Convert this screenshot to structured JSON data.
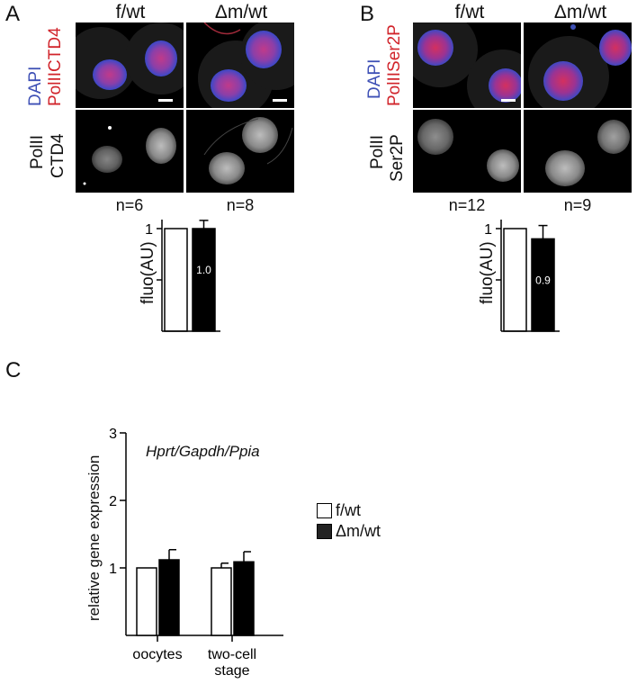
{
  "panels": {
    "A": {
      "letter": "A",
      "col1": "f/wt",
      "col2": "Δm/wt",
      "row1_stain_blue": "DAPI",
      "row1_stain_red": "PolIICTD4",
      "row2_line1": "PolII",
      "row2_line2": "CTD4",
      "n1": "n=6",
      "n2": "n=8",
      "chart_data": {
        "type": "bar",
        "categories": [
          "f/wt",
          "Δm/wt"
        ],
        "values": [
          1.0,
          1.0
        ],
        "errors": [
          0,
          0.08
        ],
        "data_labels": [
          "",
          "1.0"
        ],
        "ylabel": "fluo(AU)",
        "ytick_labels": [
          "1"
        ],
        "colors": [
          "#ffffff",
          "#000000"
        ]
      }
    },
    "B": {
      "letter": "B",
      "col1": "f/wt",
      "col2": "Δm/wt",
      "row1_stain_blue": "DAPI",
      "row1_stain_red": "PolIISer2P",
      "row2_line1": "PolII",
      "row2_line2": "Ser2P",
      "n1": "n=12",
      "n2": "n=9",
      "chart_data": {
        "type": "bar",
        "categories": [
          "f/wt",
          "Δm/wt"
        ],
        "values": [
          1.0,
          0.9
        ],
        "errors": [
          0,
          0.13
        ],
        "data_labels": [
          "",
          "0.9"
        ],
        "ylabel": "fluo(AU)",
        "ytick_labels": [
          "1"
        ],
        "colors": [
          "#ffffff",
          "#000000"
        ]
      }
    },
    "C": {
      "letter": "C",
      "annotation": "Hprt/Gapdh/Ppia",
      "legend": [
        "f/wt",
        "Δm/wt"
      ],
      "chart_data": {
        "type": "bar",
        "categories": [
          "oocytes",
          "two-cell stage"
        ],
        "category_lines": [
          [
            "oocytes"
          ],
          [
            "two-cell",
            "stage"
          ]
        ],
        "series": [
          {
            "name": "f/wt",
            "values": [
              1.0,
              1.0
            ],
            "errors": [
              0,
              0.07
            ],
            "color": "#ffffff"
          },
          {
            "name": "Δm/wt",
            "values": [
              1.12,
              1.09
            ],
            "errors": [
              0.15,
              0.15
            ],
            "color": "#000000"
          }
        ],
        "ylabel": "relative gene expression",
        "ylim": [
          0,
          3
        ],
        "yticks": [
          1,
          2,
          3
        ],
        "legend_position": "right"
      }
    }
  }
}
